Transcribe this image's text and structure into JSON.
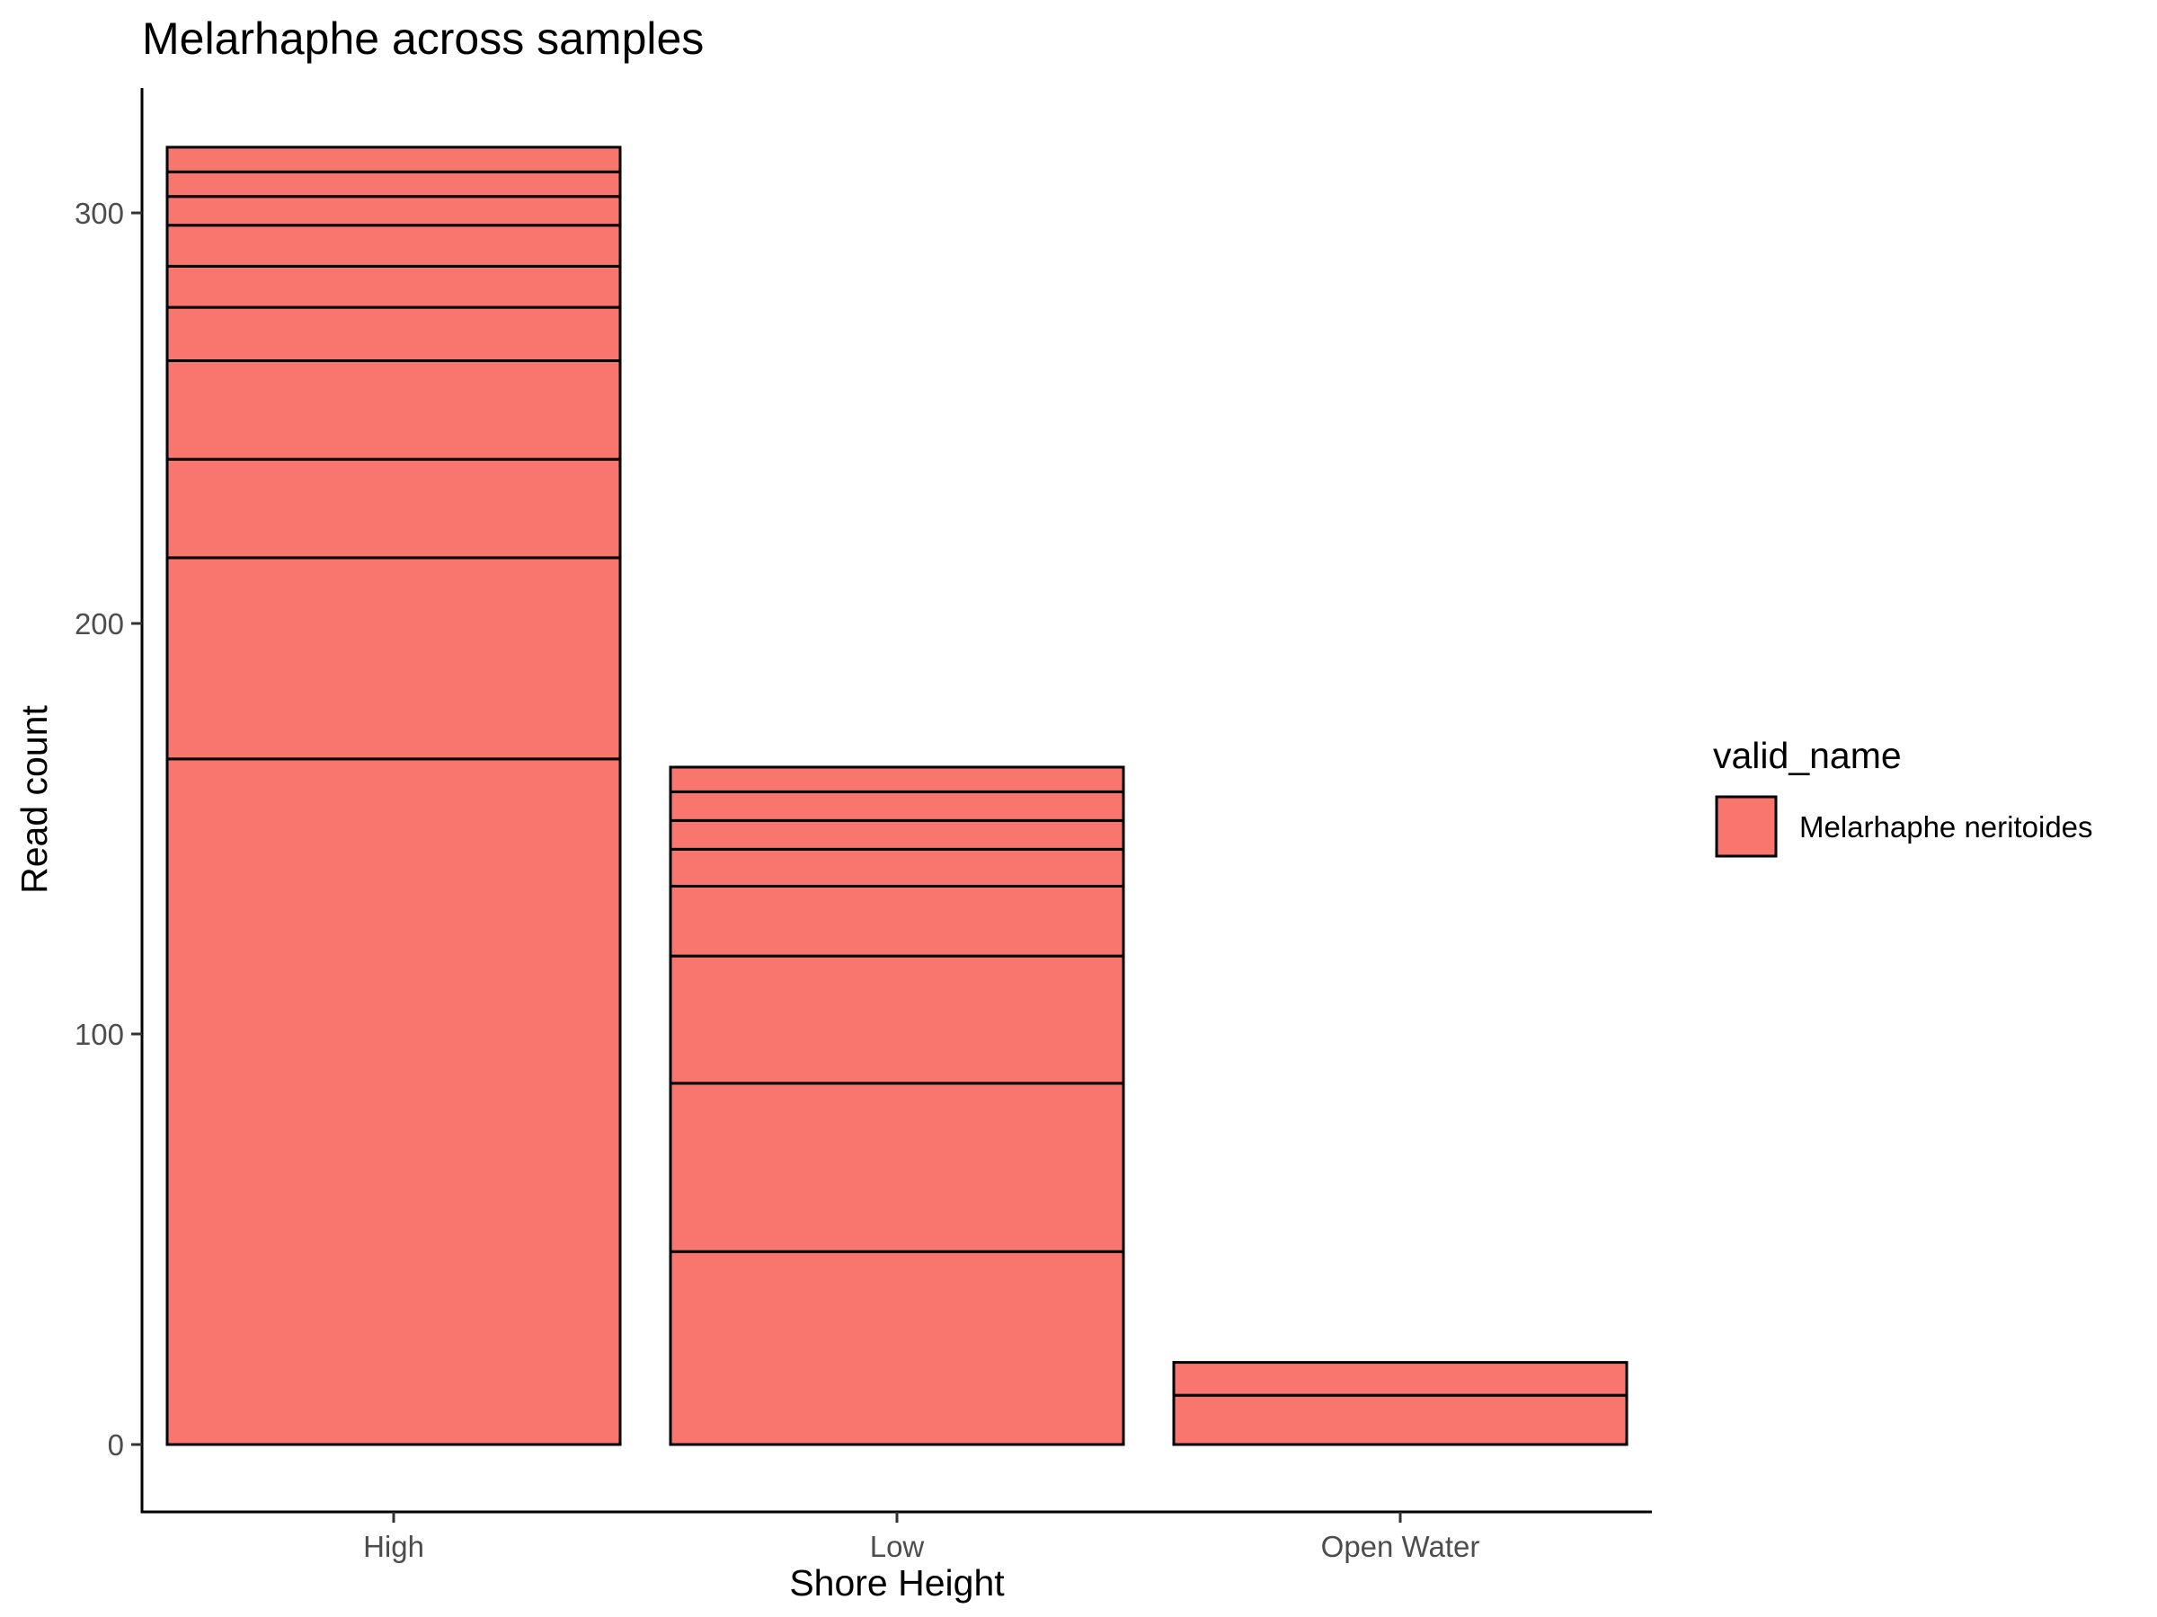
{
  "chart_data": {
    "type": "bar",
    "stacked": true,
    "title": "Melarhaphe across samples",
    "xlabel": "Shore Height",
    "ylabel": "Read count",
    "ylim": [
      -16,
      325
    ],
    "yticks": [
      0,
      100,
      200,
      300
    ],
    "categories": [
      "High",
      "Low",
      "Open Water"
    ],
    "segments": [
      [
        167,
        49,
        24,
        24,
        13,
        10,
        10,
        7,
        6,
        6
      ],
      [
        47,
        41,
        31,
        17,
        9,
        7,
        7,
        6
      ],
      [
        12,
        8
      ]
    ],
    "totals": [
      316,
      165,
      20
    ],
    "legend": {
      "title": "valid_name",
      "position": "right",
      "entries": [
        {
          "label": "Melarhaphe neritoides",
          "color": "#F8766D"
        }
      ]
    },
    "fill_color": "#F8766D",
    "stroke_color": "#000000",
    "grid": false
  }
}
